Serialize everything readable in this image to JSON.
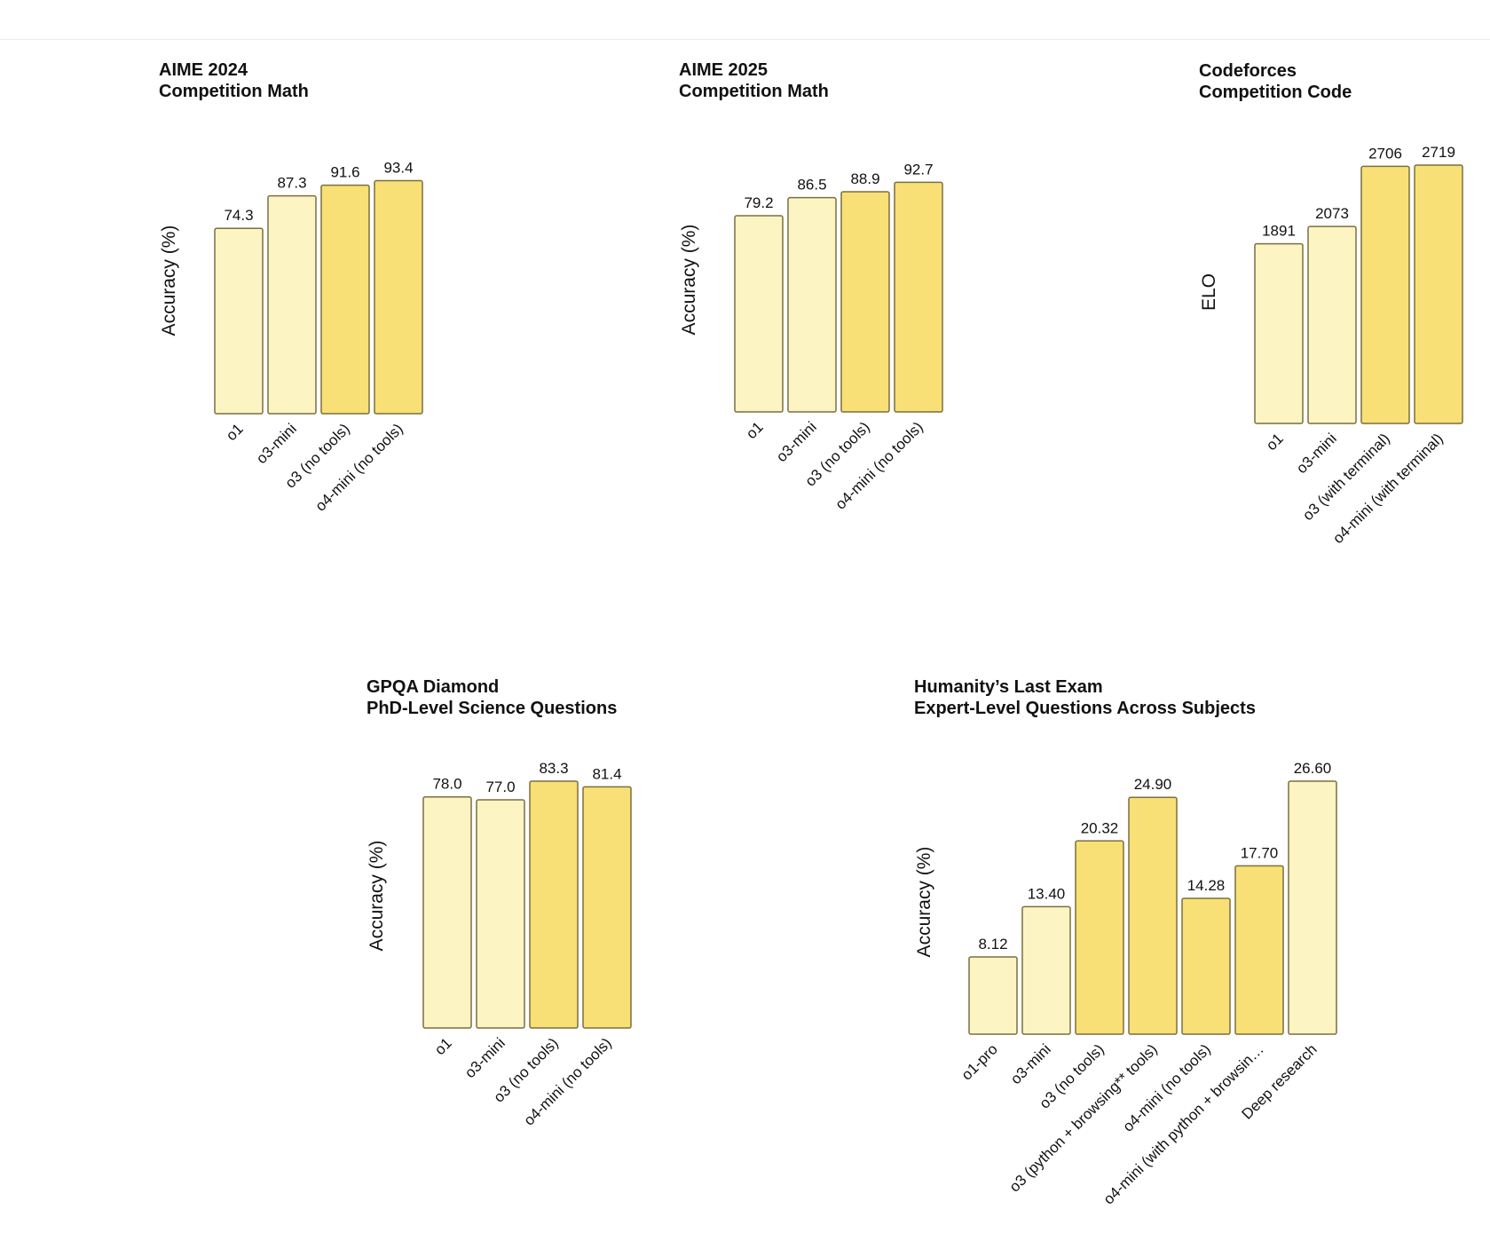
{
  "colors": {
    "light_bar": "#fdf4c3",
    "dark_bar": "#f8e076",
    "bar_stroke": "#7a6f3f"
  },
  "chart_data": [
    {
      "type": "bar",
      "title": "AIME 2024",
      "subtitle": "Competition Math",
      "ylabel": "Accuracy (%)",
      "categories": [
        "o1",
        "o3-mini",
        "o3 (no tools)",
        "o4-mini (no tools)"
      ],
      "values": [
        74.3,
        87.3,
        91.6,
        93.4
      ],
      "value_labels": [
        "74.3",
        "87.3",
        "91.6",
        "93.4"
      ],
      "highlight": [
        false,
        false,
        true,
        true
      ],
      "ylim": [
        0,
        100
      ],
      "grid": false
    },
    {
      "type": "bar",
      "title": "AIME 2025",
      "subtitle": "Competition Math",
      "ylabel": "Accuracy (%)",
      "categories": [
        "o1",
        "o3-mini",
        "o3 (no tools)",
        "o4-mini (no tools)"
      ],
      "values": [
        79.2,
        86.5,
        88.9,
        92.7
      ],
      "value_labels": [
        "79.2",
        "86.5",
        "88.9",
        "92.7"
      ],
      "highlight": [
        false,
        false,
        true,
        true
      ],
      "ylim": [
        0,
        100
      ],
      "grid": false
    },
    {
      "type": "bar",
      "title": "Codeforces",
      "subtitle": "Competition Code",
      "ylabel": "ELO",
      "categories": [
        "o1",
        "o3-mini",
        "o3 (with terminal)",
        "o4-mini (with terminal)"
      ],
      "values": [
        1891,
        2073,
        2706,
        2719
      ],
      "value_labels": [
        "1891",
        "2073",
        "2706",
        "2719"
      ],
      "highlight": [
        false,
        false,
        true,
        true
      ],
      "ylim": [
        0,
        2719
      ],
      "grid": false
    },
    {
      "type": "bar",
      "title": "GPQA Diamond",
      "subtitle": "PhD-Level Science Questions",
      "ylabel": "Accuracy (%)",
      "categories": [
        "o1",
        "o3-mini",
        "o3 (no tools)",
        "o4-mini (no tools)"
      ],
      "values": [
        78.0,
        77.0,
        83.3,
        81.4
      ],
      "value_labels": [
        "78.0",
        "77.0",
        "83.3",
        "81.4"
      ],
      "highlight": [
        false,
        false,
        true,
        true
      ],
      "ylim": [
        0,
        83.3
      ],
      "grid": false
    },
    {
      "type": "bar",
      "title": "Humanity’s Last Exam",
      "subtitle": "Expert-Level Questions Across Subjects",
      "ylabel": "Accuracy (%)",
      "categories": [
        "o1-pro",
        "o3-mini",
        "o3 (no tools)",
        "o3 (python + browsing** tools)",
        "o4-mini (no tools)",
        "o4-mini (with python + browsin…",
        "Deep research"
      ],
      "values": [
        8.12,
        13.4,
        20.32,
        24.9,
        14.28,
        17.7,
        26.6
      ],
      "value_labels": [
        "8.12",
        "13.40",
        "20.32",
        "24.90",
        "14.28",
        "17.70",
        "26.60"
      ],
      "highlight": [
        false,
        false,
        true,
        true,
        true,
        true,
        false
      ],
      "ylim": [
        0,
        26.6
      ],
      "grid": false
    }
  ]
}
